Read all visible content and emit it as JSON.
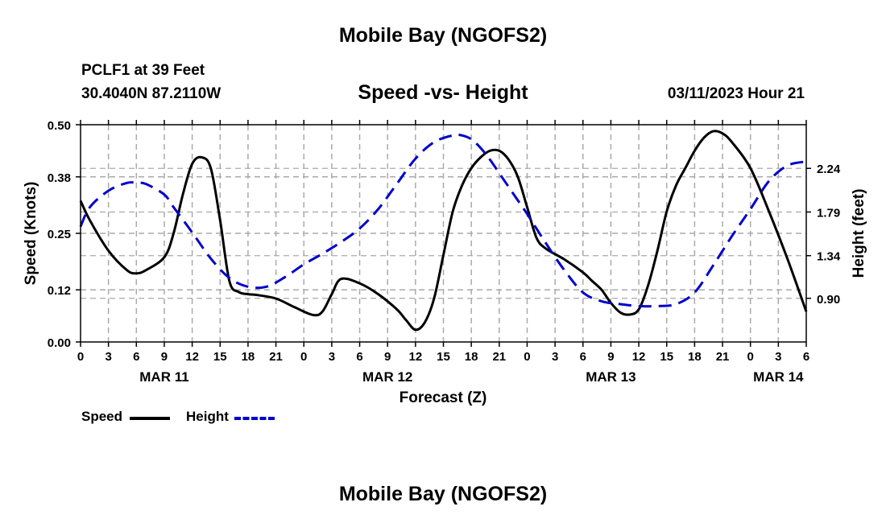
{
  "header": {
    "title": "Mobile Bay (NGOFS2)",
    "station": "PCLF1 at 39 Feet",
    "coords": "30.4040N  87.2110W",
    "chart_title": "Speed -vs- Height",
    "datetime": "03/11/2023 Hour 21"
  },
  "footer": {
    "title": "Mobile Bay (NGOFS2)"
  },
  "legend": {
    "speed_label": "Speed",
    "height_label": "Height",
    "speed_color": "#000000",
    "height_color": "#0000cc"
  },
  "chart_data": {
    "type": "line",
    "title": "Speed -vs- Height",
    "xlabel": "Forecast (Z)",
    "ylabel_left": "Speed (Knots)",
    "ylabel_right": "Height (feet)",
    "x_hours_range": [
      0,
      78
    ],
    "x_tick_labels": [
      "0",
      "3",
      "6",
      "9",
      "12",
      "15",
      "18",
      "21",
      "0",
      "3",
      "6",
      "9",
      "12",
      "15",
      "18",
      "21",
      "0",
      "3",
      "6",
      "9",
      "12",
      "15",
      "18",
      "21",
      "0",
      "3",
      "6"
    ],
    "day_labels": [
      {
        "label": "MAR 11",
        "hour": 9
      },
      {
        "label": "MAR 12",
        "hour": 33
      },
      {
        "label": "MAR 13",
        "hour": 57
      },
      {
        "label": "MAR 14",
        "hour": 75
      }
    ],
    "ylim_left": [
      0,
      0.5
    ],
    "yticks_left": [
      "0.00",
      "0.12",
      "0.25",
      "0.38",
      "0.50"
    ],
    "ylim_right": [
      0.45,
      2.69
    ],
    "yticks_right": [
      "0.90",
      "1.34",
      "1.79",
      "2.24"
    ],
    "grid": true,
    "series": [
      {
        "name": "Speed",
        "axis": "left",
        "color": "#000000",
        "dash": "solid",
        "x": [
          0,
          1,
          3,
          5,
          6,
          7,
          9,
          10,
          11,
          12,
          13,
          14,
          15,
          16,
          17,
          18,
          19,
          21,
          23,
          25,
          26,
          27,
          28,
          30,
          32,
          34,
          35,
          36,
          37,
          38,
          39,
          40,
          41,
          42,
          43,
          44,
          45,
          46,
          47,
          48,
          49,
          50,
          52,
          54,
          55,
          56,
          57,
          58,
          59,
          60,
          61,
          62,
          63,
          64,
          65,
          66,
          67,
          68,
          69,
          70,
          72,
          74,
          76,
          78
        ],
        "values": [
          0.325,
          0.28,
          0.21,
          0.165,
          0.158,
          0.165,
          0.195,
          0.25,
          0.34,
          0.41,
          0.425,
          0.4,
          0.28,
          0.14,
          0.115,
          0.11,
          0.108,
          0.1,
          0.08,
          0.062,
          0.07,
          0.11,
          0.145,
          0.135,
          0.11,
          0.075,
          0.05,
          0.028,
          0.045,
          0.1,
          0.2,
          0.3,
          0.36,
          0.4,
          0.425,
          0.44,
          0.44,
          0.42,
          0.38,
          0.31,
          0.24,
          0.215,
          0.19,
          0.16,
          0.14,
          0.12,
          0.09,
          0.068,
          0.063,
          0.075,
          0.13,
          0.21,
          0.3,
          0.36,
          0.4,
          0.44,
          0.47,
          0.485,
          0.48,
          0.46,
          0.4,
          0.3,
          0.19,
          0.07
        ]
      },
      {
        "name": "Height",
        "axis": "right",
        "color": "#0000cc",
        "dash": "dashed",
        "x": [
          0,
          1,
          3,
          5,
          6,
          7,
          9,
          10,
          12,
          14,
          16,
          18,
          20,
          22,
          24,
          26,
          28,
          30,
          32,
          34,
          36,
          38,
          40,
          41,
          42,
          43,
          44,
          45,
          46,
          47,
          48,
          50,
          52,
          54,
          56,
          58,
          60,
          62,
          64,
          66,
          68,
          70,
          72,
          74,
          76,
          78
        ],
        "values": [
          1.64,
          1.84,
          2.01,
          2.09,
          2.09,
          2.08,
          1.97,
          1.84,
          1.58,
          1.31,
          1.11,
          1.02,
          1.02,
          1.12,
          1.25,
          1.36,
          1.48,
          1.62,
          1.82,
          2.08,
          2.34,
          2.51,
          2.58,
          2.58,
          2.54,
          2.45,
          2.33,
          2.19,
          2.05,
          1.91,
          1.77,
          1.47,
          1.19,
          0.96,
          0.87,
          0.84,
          0.82,
          0.82,
          0.84,
          0.96,
          1.24,
          1.54,
          1.82,
          2.11,
          2.27,
          2.31
        ]
      }
    ]
  }
}
